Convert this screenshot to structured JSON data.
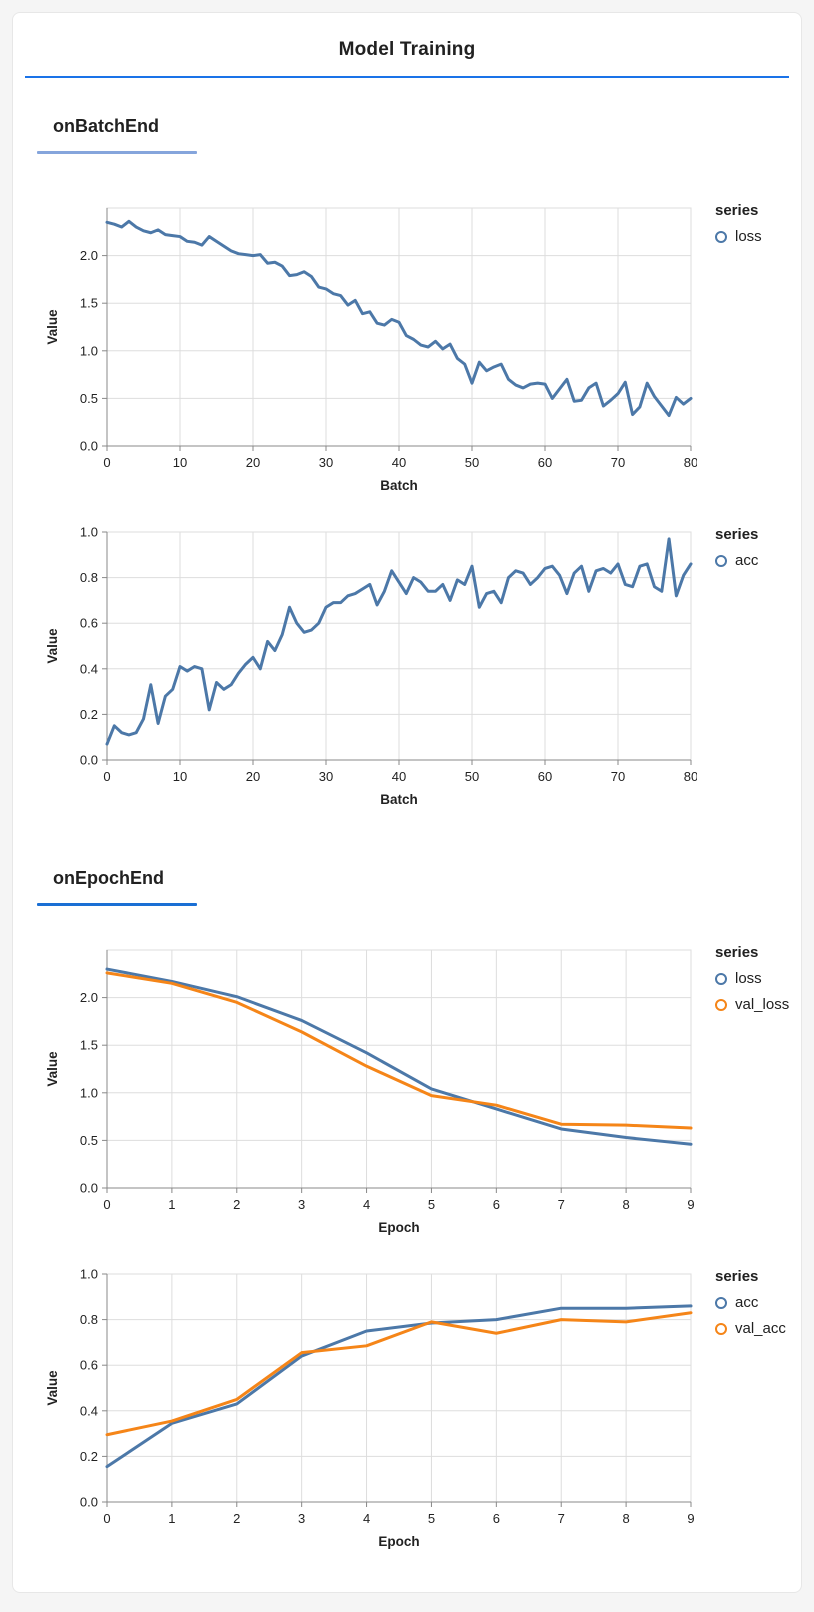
{
  "page": {
    "title": "Model Training"
  },
  "sections": [
    {
      "heading": "onBatchEnd"
    },
    {
      "heading": "onEpochEnd"
    }
  ],
  "colors": {
    "series_blue": "#4C78A8",
    "series_orange": "#F58518",
    "header_underline": "#1A73E8",
    "batch_heading_underline": "#85A5DC",
    "epoch_heading_underline": "#1A6FD4",
    "grid": "#DDDDDD",
    "axis_domain": "#888888",
    "card_background": "#FFFFFF",
    "page_background": "#F5F5F5"
  },
  "chart_data": [
    {
      "type": "line",
      "section": 0,
      "xlabel": "Batch",
      "ylabel": "Value",
      "xlim": [
        0,
        80
      ],
      "ylim": [
        0,
        2.5
      ],
      "xticks": [
        0,
        10,
        20,
        30,
        40,
        50,
        60,
        70,
        80
      ],
      "yticks": [
        0,
        0.5,
        1.0,
        1.5,
        2.0
      ],
      "ytick_labels": [
        "0.0",
        "0.5",
        "1.0",
        "1.5",
        "2.0"
      ],
      "grid": true,
      "legend_title": "series",
      "legend_position": "right",
      "series": [
        {
          "name": "loss",
          "color": "#4C78A8",
          "values": [
            2.35,
            2.33,
            2.3,
            2.36,
            2.3,
            2.26,
            2.24,
            2.27,
            2.22,
            2.21,
            2.2,
            2.15,
            2.14,
            2.11,
            2.2,
            2.15,
            2.1,
            2.05,
            2.02,
            2.01,
            2.0,
            2.01,
            1.92,
            1.93,
            1.89,
            1.79,
            1.8,
            1.83,
            1.78,
            1.67,
            1.65,
            1.6,
            1.58,
            1.48,
            1.53,
            1.39,
            1.41,
            1.29,
            1.27,
            1.33,
            1.3,
            1.16,
            1.12,
            1.06,
            1.04,
            1.1,
            1.02,
            1.07,
            0.92,
            0.86,
            0.66,
            0.88,
            0.79,
            0.83,
            0.86,
            0.7,
            0.64,
            0.61,
            0.65,
            0.66,
            0.65,
            0.5,
            0.6,
            0.7,
            0.47,
            0.48,
            0.61,
            0.66,
            0.42,
            0.48,
            0.55,
            0.67,
            0.33,
            0.41,
            0.66,
            0.52,
            0.42,
            0.32,
            0.51,
            0.44,
            0.5
          ]
        }
      ]
    },
    {
      "type": "line",
      "section": 0,
      "xlabel": "Batch",
      "ylabel": "Value",
      "xlim": [
        0,
        80
      ],
      "ylim": [
        0,
        1.0
      ],
      "xticks": [
        0,
        10,
        20,
        30,
        40,
        50,
        60,
        70,
        80
      ],
      "yticks": [
        0,
        0.2,
        0.4,
        0.6,
        0.8,
        1.0
      ],
      "ytick_labels": [
        "0.0",
        "0.2",
        "0.4",
        "0.6",
        "0.8",
        "1.0"
      ],
      "grid": true,
      "legend_title": "series",
      "legend_position": "right",
      "series": [
        {
          "name": "acc",
          "color": "#4C78A8",
          "values": [
            0.07,
            0.15,
            0.12,
            0.11,
            0.12,
            0.18,
            0.33,
            0.16,
            0.28,
            0.31,
            0.41,
            0.39,
            0.41,
            0.4,
            0.22,
            0.34,
            0.31,
            0.33,
            0.38,
            0.42,
            0.45,
            0.4,
            0.52,
            0.48,
            0.55,
            0.67,
            0.6,
            0.56,
            0.57,
            0.6,
            0.67,
            0.69,
            0.69,
            0.72,
            0.73,
            0.75,
            0.77,
            0.68,
            0.74,
            0.83,
            0.78,
            0.73,
            0.8,
            0.78,
            0.74,
            0.74,
            0.77,
            0.7,
            0.79,
            0.77,
            0.85,
            0.67,
            0.73,
            0.74,
            0.69,
            0.8,
            0.83,
            0.82,
            0.77,
            0.8,
            0.84,
            0.85,
            0.81,
            0.73,
            0.82,
            0.85,
            0.74,
            0.83,
            0.84,
            0.82,
            0.86,
            0.77,
            0.76,
            0.85,
            0.86,
            0.76,
            0.74,
            0.97,
            0.72,
            0.81,
            0.86
          ]
        }
      ]
    },
    {
      "type": "line",
      "section": 1,
      "xlabel": "Epoch",
      "ylabel": "Value",
      "xlim": [
        0,
        9
      ],
      "ylim": [
        0,
        2.5
      ],
      "xticks": [
        0,
        1,
        2,
        3,
        4,
        5,
        6,
        7,
        8,
        9
      ],
      "yticks": [
        0,
        0.5,
        1.0,
        1.5,
        2.0
      ],
      "ytick_labels": [
        "0.0",
        "0.5",
        "1.0",
        "1.5",
        "2.0"
      ],
      "grid": true,
      "legend_title": "series",
      "legend_position": "right",
      "series": [
        {
          "name": "loss",
          "color": "#4C78A8",
          "values": [
            2.3,
            2.17,
            2.01,
            1.76,
            1.42,
            1.04,
            0.83,
            0.62,
            0.53,
            0.46
          ]
        },
        {
          "name": "val_loss",
          "color": "#F58518",
          "values": [
            2.26,
            2.15,
            1.95,
            1.64,
            1.28,
            0.97,
            0.87,
            0.67,
            0.66,
            0.63
          ]
        }
      ]
    },
    {
      "type": "line",
      "section": 1,
      "xlabel": "Epoch",
      "ylabel": "Value",
      "xlim": [
        0,
        9
      ],
      "ylim": [
        0,
        1.0
      ],
      "xticks": [
        0,
        1,
        2,
        3,
        4,
        5,
        6,
        7,
        8,
        9
      ],
      "yticks": [
        0,
        0.2,
        0.4,
        0.6,
        0.8,
        1.0
      ],
      "ytick_labels": [
        "0.0",
        "0.2",
        "0.4",
        "0.6",
        "0.8",
        "1.0"
      ],
      "grid": true,
      "legend_title": "series",
      "legend_position": "right",
      "series": [
        {
          "name": "acc",
          "color": "#4C78A8",
          "values": [
            0.155,
            0.345,
            0.43,
            0.64,
            0.75,
            0.785,
            0.8,
            0.85,
            0.85,
            0.86
          ]
        },
        {
          "name": "val_acc",
          "color": "#F58518",
          "values": [
            0.295,
            0.355,
            0.45,
            0.655,
            0.685,
            0.79,
            0.74,
            0.8,
            0.79,
            0.83
          ]
        }
      ]
    }
  ]
}
